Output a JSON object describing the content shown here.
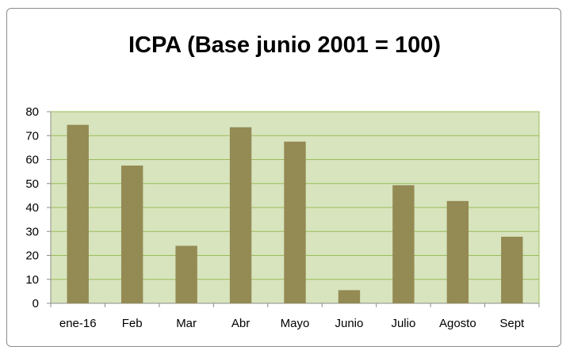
{
  "chart_data": {
    "type": "bar",
    "title": "ICPA (Base junio 2001 = 100)",
    "xlabel": "",
    "ylabel": "",
    "categories": [
      "ene-16",
      "Feb",
      "Mar",
      "Abr",
      "Mayo",
      "Junio",
      "Julio",
      "Agosto",
      "Sept"
    ],
    "values": [
      74.5,
      57.5,
      24,
      73.5,
      67.5,
      5.5,
      49.3,
      42.7,
      27.8
    ],
    "ylim": [
      0,
      80
    ],
    "yticks": [
      0,
      10,
      20,
      30,
      40,
      50,
      60,
      70,
      80
    ],
    "grid": true,
    "legend": "none",
    "colors": {
      "bar": "#948a54",
      "plot_background": "#d7e4bd",
      "plot_border": "#9bbb59",
      "gridline": "#9bbb59"
    }
  }
}
